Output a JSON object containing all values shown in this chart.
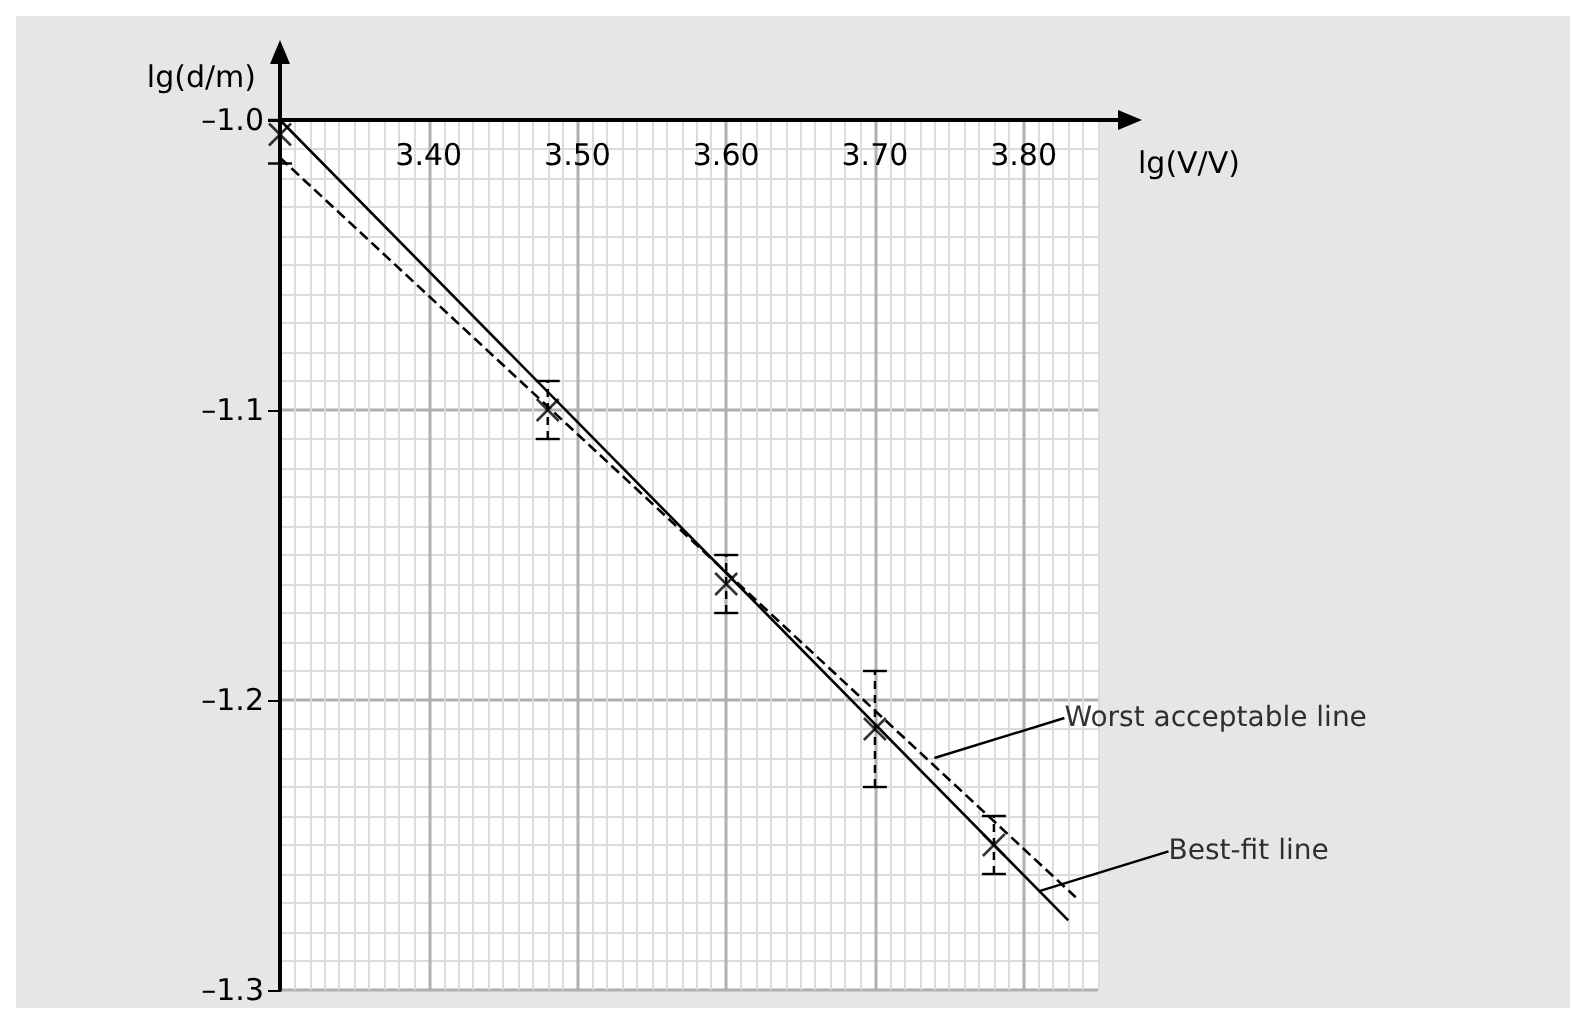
{
  "chart_data": {
    "type": "scatter",
    "xlabel": "lg(V/V)",
    "ylabel": "lg(d/m)",
    "xlim": [
      3.3,
      3.85
    ],
    "ylim": [
      -1.3,
      -1.0
    ],
    "xticks": [
      {
        "value": 3.4,
        "label": "3.40"
      },
      {
        "value": 3.5,
        "label": "3.50"
      },
      {
        "value": 3.6,
        "label": "3.60"
      },
      {
        "value": 3.7,
        "label": "3.70"
      },
      {
        "value": 3.8,
        "label": "3.80"
      }
    ],
    "yticks": [
      {
        "value": -1.0,
        "label": "–1.0"
      },
      {
        "value": -1.1,
        "label": "–1.1"
      },
      {
        "value": -1.2,
        "label": "–1.2"
      },
      {
        "value": -1.3,
        "label": "–1.3"
      }
    ],
    "grid": true,
    "tick_labels": "xy",
    "series": [
      {
        "color": "#000000",
        "marker": "cross",
        "x": [
          3.3,
          3.48,
          3.6,
          3.7,
          3.78
        ],
        "values": [
          -1.005,
          -1.1,
          -1.16,
          -1.21,
          -1.25
        ],
        "errors": [
          [
            -1.015,
            -1.0
          ],
          0.01,
          0.01,
          0.02,
          0.01
        ]
      },
      {
        "type": "line",
        "color": "#000000",
        "marker": "none",
        "line_style": "solid",
        "x": [
          3.3,
          3.83
        ],
        "values": [
          -1.0,
          -1.276
        ]
      },
      {
        "type": "line",
        "color": "#000000",
        "marker": "none",
        "line_style": "dashed",
        "x": [
          3.3,
          3.835
        ],
        "values": [
          -1.013,
          -1.268
        ]
      }
    ],
    "annotations": [
      {
        "text": "Worst acceptable line",
        "x": 3.74,
        "y": -1.22
      },
      {
        "text": "Best-fit line",
        "x": 3.81,
        "y": -1.266
      }
    ]
  }
}
